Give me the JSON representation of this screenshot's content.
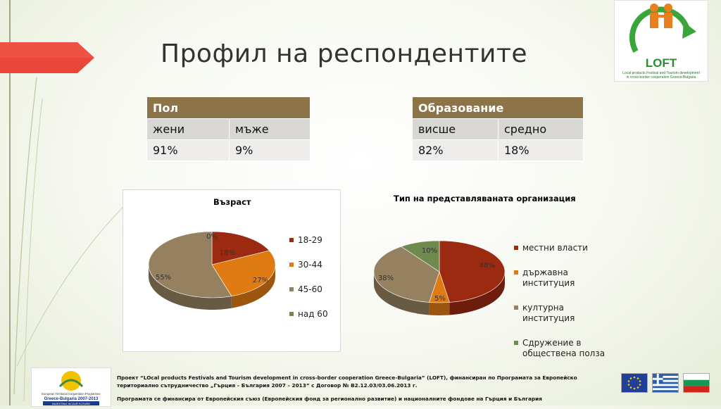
{
  "slide": {
    "title": "Профил на респондентите"
  },
  "logo": {
    "name": "LOFT",
    "caption_line1": "Local products Festival and Tourism development",
    "caption_line2": "in cross-border cooperation Greece-Bulgaria"
  },
  "table_gender": {
    "header": "Пол",
    "col1_label": "жени",
    "col2_label": "мъже",
    "col1_value": "91%",
    "col2_value": "9%"
  },
  "table_education": {
    "header": "Образование",
    "col1_label": "висше",
    "col2_label": "средно",
    "col1_value": "82%",
    "col2_value": "18%"
  },
  "chart_data": [
    {
      "type": "pie",
      "title": "Възраст",
      "categories": [
        "18-29",
        "30-44",
        "45-60",
        "над 60"
      ],
      "values": [
        18,
        27,
        55,
        0
      ],
      "data_labels": [
        "18%",
        "27%",
        "55%",
        "0%"
      ],
      "colors": [
        "#9b2a11",
        "#e07b13",
        "#958060",
        "#6e8a4e"
      ],
      "legend_placement": "right"
    },
    {
      "type": "pie",
      "title": "Тип на представляваната организация",
      "categories": [
        "местни власти",
        "държавна институция",
        "културна институция",
        "Сдружение в обществена полза"
      ],
      "legend_lines": [
        [
          "местни власти"
        ],
        [
          "държавна",
          "институция"
        ],
        [
          "културна институция"
        ],
        [
          "Сдружение в",
          "обществена полза"
        ]
      ],
      "values": [
        48,
        5,
        38,
        10
      ],
      "data_labels": [
        "48%",
        "5%",
        "38%",
        "10%"
      ],
      "colors": [
        "#9b2a11",
        "#e07b13",
        "#958060",
        "#6e8a4e"
      ],
      "legend_placement": "right"
    }
  ],
  "footer": {
    "programme_logo_line1": "European Territorial Cooperation Programme",
    "programme_logo_line2": "Greece-Bulgaria 2007-2013",
    "programme_logo_line3": "INVESTING IN OUR FUTURE",
    "note_line1": "Проект “LOcal products Festivals and Tourism development in cross-border cooperation Greece-Bulgaria” (LOFT), финансиран по Програмата за Европейско",
    "note_line2": "териториално сътрудничество „Гърция – България 2007 – 2013” с Договор № B2.12.03/03.06.2013 г.",
    "note_line3": "Програмата се финансира от Европейския съюз (Европейския фонд за регионално развитие) и националните фондове на Гърция и България"
  }
}
